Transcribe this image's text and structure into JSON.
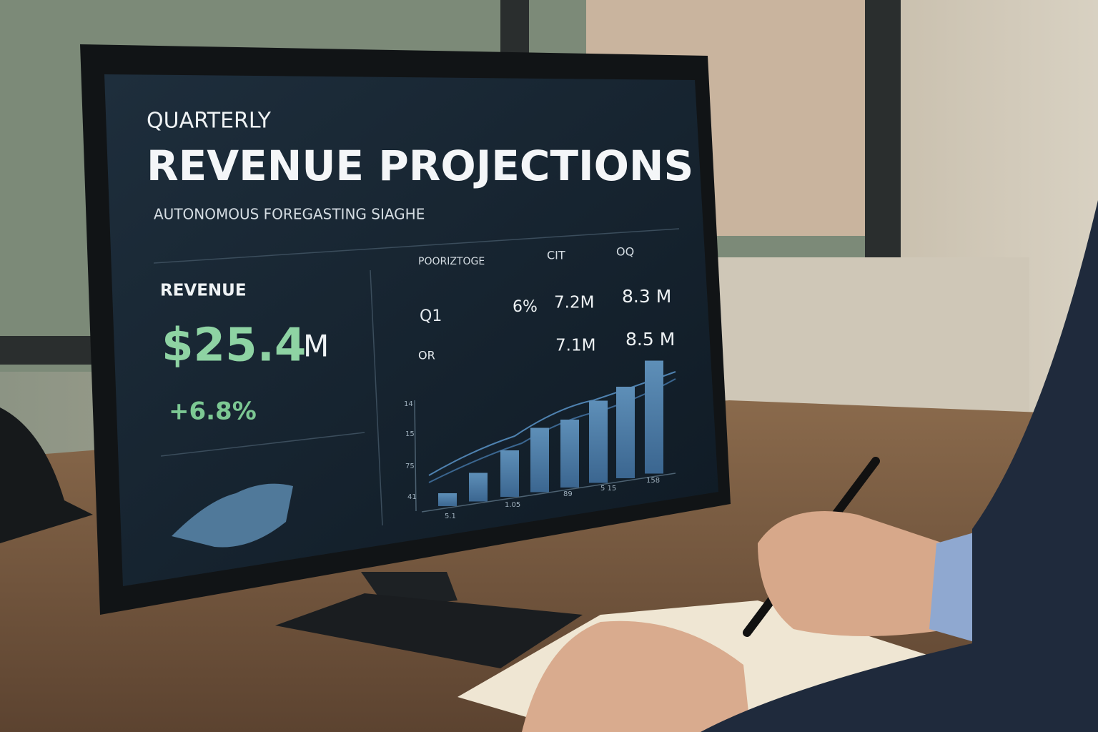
{
  "screen": {
    "kicker": "QUARTERLY",
    "title": "REVENUE PROJECTIONS",
    "subtitle": "AUTONOMOUS FOREGASTING SIAGHE",
    "revenue": {
      "label": "REVENUE",
      "amount": "$25.4",
      "unit": "M",
      "change": "+6.8%"
    },
    "table": {
      "headers": [
        "POORIZTOGE",
        "CIT",
        "OQ"
      ],
      "rows": [
        {
          "label": "Q1",
          "cells": [
            "6%",
            "7.2M",
            "8.3 M"
          ]
        },
        {
          "label": "OR",
          "cells": [
            "7.1M",
            "8.5 M"
          ]
        }
      ]
    },
    "chart": {
      "y_labels": [
        "14",
        "15",
        "75",
        "41"
      ],
      "x_labels": [
        "5.1",
        "1.05",
        "89",
        "5 15",
        "158"
      ],
      "bars": [
        18,
        40,
        65,
        90,
        95,
        115,
        128,
        158
      ]
    }
  }
}
